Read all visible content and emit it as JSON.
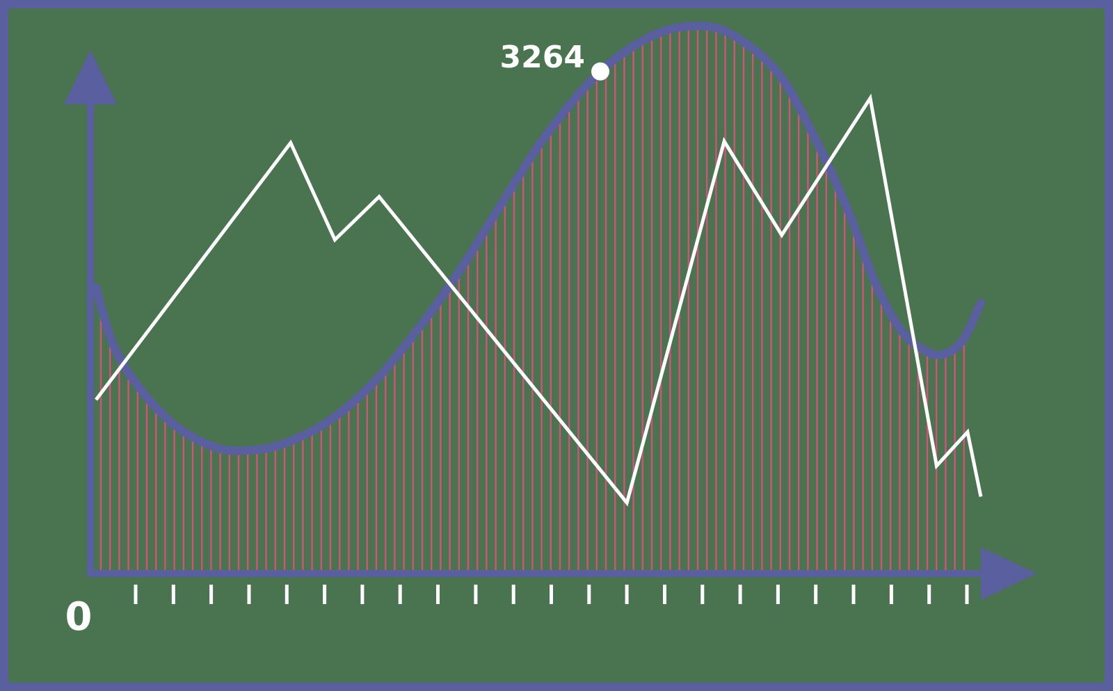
{
  "colors": {
    "frame": "#5a5fa0",
    "background": "#4a7350",
    "axis": "#5a5fa0",
    "curve": "#5a5fa0",
    "hatch": "#d4517a",
    "zigzag": "#ffffff",
    "tick": "#ffffff",
    "label": "#ffffff"
  },
  "chart_data": {
    "type": "line",
    "title": "",
    "xlabel": "",
    "ylabel": "",
    "origin_label": "0",
    "x_tick_count": 23,
    "annotation": {
      "text": "3264",
      "x": 0.57,
      "y": 3264
    },
    "xlim": [
      0,
      1
    ],
    "ylim": [
      0,
      4000
    ],
    "grid": false,
    "series": [
      {
        "style": "thick-curve-with-fill-hatching",
        "points": [
          [
            0.0,
            1860
          ],
          [
            0.02,
            1480
          ],
          [
            0.05,
            1200
          ],
          [
            0.09,
            960
          ],
          [
            0.135,
            820
          ],
          [
            0.17,
            800
          ],
          [
            0.21,
            840
          ],
          [
            0.26,
            980
          ],
          [
            0.31,
            1220
          ],
          [
            0.36,
            1560
          ],
          [
            0.41,
            1960
          ],
          [
            0.46,
            2420
          ],
          [
            0.51,
            2860
          ],
          [
            0.57,
            3264
          ],
          [
            0.63,
            3500
          ],
          [
            0.68,
            3560
          ],
          [
            0.72,
            3500
          ],
          [
            0.77,
            3260
          ],
          [
            0.81,
            2860
          ],
          [
            0.85,
            2360
          ],
          [
            0.88,
            1900
          ],
          [
            0.91,
            1580
          ],
          [
            0.94,
            1440
          ],
          [
            0.96,
            1430
          ],
          [
            0.98,
            1520
          ],
          [
            1.0,
            1760
          ]
        ]
      },
      {
        "style": "thin-zigzag",
        "points": [
          [
            0.0,
            1130
          ],
          [
            0.22,
            2800
          ],
          [
            0.27,
            2170
          ],
          [
            0.32,
            2450
          ],
          [
            0.6,
            460
          ],
          [
            0.71,
            2810
          ],
          [
            0.775,
            2200
          ],
          [
            0.875,
            3090
          ],
          [
            0.95,
            700
          ],
          [
            0.985,
            920
          ],
          [
            1.0,
            500
          ]
        ]
      }
    ]
  }
}
